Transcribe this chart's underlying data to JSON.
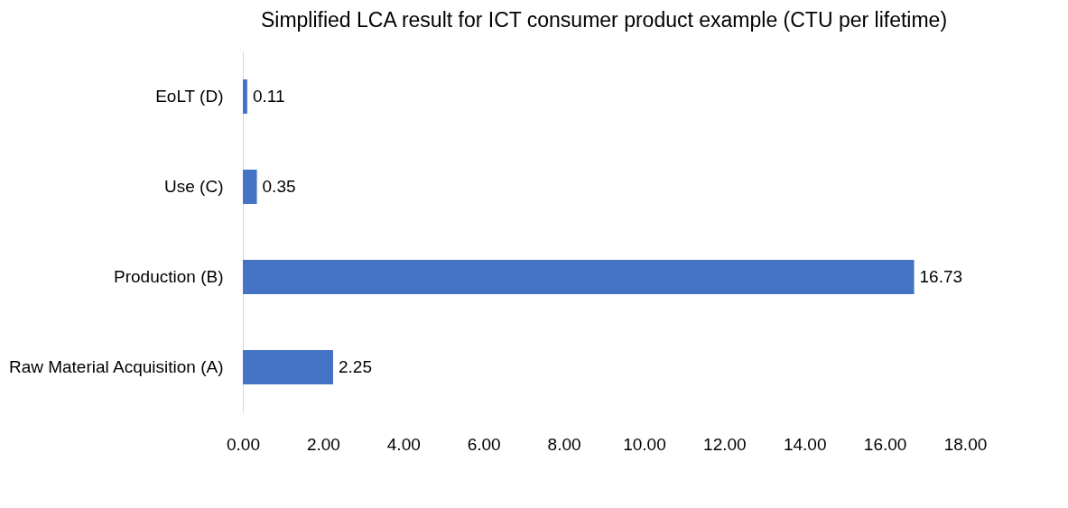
{
  "chart_data": {
    "type": "bar",
    "orientation": "horizontal",
    "title": "Simplified LCA result for ICT consumer product example (CTU per lifetime)",
    "categories": [
      "EoLT (D)",
      "Use (C)",
      "Production (B)",
      "Raw Material Acquisition (A)"
    ],
    "values": [
      0.11,
      0.35,
      16.73,
      2.25
    ],
    "color": "#4472c4",
    "xlim": [
      0,
      18
    ],
    "xticks": [
      {
        "value": 0,
        "label": "0.00"
      },
      {
        "value": 2,
        "label": "2.00"
      },
      {
        "value": 4,
        "label": "4.00"
      },
      {
        "value": 6,
        "label": "6.00"
      },
      {
        "value": 8,
        "label": "8.00"
      },
      {
        "value": 10,
        "label": "10.00"
      },
      {
        "value": 12,
        "label": "12.00"
      },
      {
        "value": 14,
        "label": "14.00"
      },
      {
        "value": 16,
        "label": "16.00"
      },
      {
        "value": 18,
        "label": "18.00"
      }
    ],
    "data_labels": true,
    "grid": false
  }
}
